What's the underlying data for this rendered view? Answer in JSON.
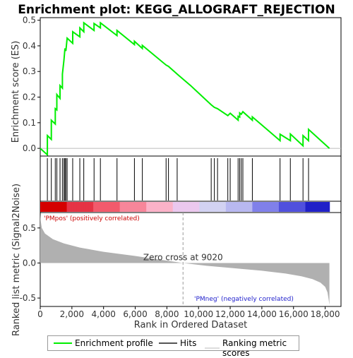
{
  "chart_data": {
    "type": "line",
    "title": "Enrichment plot: KEGG_ALLOGRAFT_REJECTION",
    "ylabel": "Enrichment score (ES)",
    "xlabel": "Rank in Ordered Dataset",
    "ylabel2": "Ranked list metric (Signal2Noise)",
    "xlim": [
      0,
      19000
    ],
    "ylim": [
      -0.03,
      0.51
    ],
    "ylim2": [
      -0.62,
      0.72
    ],
    "xticks": [
      0,
      2000,
      4000,
      6000,
      8000,
      10000,
      12000,
      14000,
      16000,
      18000
    ],
    "xtick_labels": [
      "0",
      "2,000",
      "4,000",
      "6,000",
      "8,000",
      "10,000",
      "12,000",
      "14,000",
      "16,000",
      "18,000"
    ],
    "yticks": [
      0.0,
      0.1,
      0.2,
      0.3,
      0.4,
      0.5
    ],
    "ytick_labels": [
      "0.0",
      "0.1",
      "0.2",
      "0.3",
      "0.4",
      "0.5"
    ],
    "yticks2": [
      0.5,
      0.0,
      -0.5
    ],
    "ytick2_labels": [
      "0.5",
      "0.0",
      "-0.5"
    ],
    "zero_cross_label": "Zero cross at 9020",
    "zero_cross": 9020,
    "pos_label": "'PMpos' (positively correlated)",
    "neg_label": "'PMneg' (negatively correlated)",
    "n_genes": 18270,
    "hits": [
      450,
      700,
      950,
      1050,
      1250,
      1400,
      1500,
      1560,
      1620,
      1700,
      2050,
      2500,
      2750,
      3400,
      3800,
      4850,
      5950,
      6450,
      7950,
      8100,
      8650,
      10800,
      11000,
      11200,
      11850,
      12000,
      12500,
      12600,
      12700,
      12800,
      13400,
      15150,
      15800,
      16600,
      16950
    ],
    "es_points": [
      [
        0,
        0.0
      ],
      [
        450,
        -0.025
      ],
      [
        450,
        0.05
      ],
      [
        700,
        0.035
      ],
      [
        700,
        0.11
      ],
      [
        950,
        0.095
      ],
      [
        950,
        0.155
      ],
      [
        1050,
        0.15
      ],
      [
        1050,
        0.21
      ],
      [
        1250,
        0.195
      ],
      [
        1250,
        0.245
      ],
      [
        1400,
        0.235
      ],
      [
        1400,
        0.29
      ],
      [
        1500,
        0.345
      ],
      [
        1560,
        0.39
      ],
      [
        1620,
        0.38
      ],
      [
        1700,
        0.43
      ],
      [
        2050,
        0.41
      ],
      [
        2050,
        0.455
      ],
      [
        2500,
        0.435
      ],
      [
        2500,
        0.47
      ],
      [
        2750,
        0.455
      ],
      [
        2750,
        0.49
      ],
      [
        3400,
        0.46
      ],
      [
        3400,
        0.487
      ],
      [
        3800,
        0.47
      ],
      [
        3800,
        0.49
      ],
      [
        4850,
        0.44
      ],
      [
        4850,
        0.46
      ],
      [
        5950,
        0.405
      ],
      [
        5950,
        0.418
      ],
      [
        6450,
        0.39
      ],
      [
        6450,
        0.402
      ],
      [
        7950,
        0.325
      ],
      [
        8100,
        0.32
      ],
      [
        8650,
        0.29
      ],
      [
        9500,
        0.245
      ],
      [
        10800,
        0.17
      ],
      [
        11000,
        0.16
      ],
      [
        11200,
        0.155
      ],
      [
        11850,
        0.128
      ],
      [
        12000,
        0.137
      ],
      [
        12500,
        0.11
      ],
      [
        12500,
        0.125
      ],
      [
        12600,
        0.122
      ],
      [
        12600,
        0.138
      ],
      [
        12700,
        0.133
      ],
      [
        12800,
        0.143
      ],
      [
        13400,
        0.11
      ],
      [
        13400,
        0.123
      ],
      [
        15150,
        0.03
      ],
      [
        15150,
        0.055
      ],
      [
        15800,
        0.03
      ],
      [
        15800,
        0.056
      ],
      [
        16600,
        0.01
      ],
      [
        16600,
        0.05
      ],
      [
        16950,
        0.03
      ],
      [
        16950,
        0.074
      ],
      [
        18270,
        0.0
      ]
    ],
    "metric_curve": [
      [
        0,
        0.7
      ],
      [
        30,
        0.6
      ],
      [
        100,
        0.5
      ],
      [
        300,
        0.42
      ],
      [
        800,
        0.34
      ],
      [
        1500,
        0.28
      ],
      [
        2500,
        0.22
      ],
      [
        4000,
        0.16
      ],
      [
        6000,
        0.1
      ],
      [
        7500,
        0.05
      ],
      [
        9020,
        0.0
      ],
      [
        10500,
        -0.04
      ],
      [
        12000,
        -0.07
      ],
      [
        14000,
        -0.11
      ],
      [
        15500,
        -0.15
      ],
      [
        16500,
        -0.19
      ],
      [
        17200,
        -0.23
      ],
      [
        17700,
        -0.28
      ],
      [
        18000,
        -0.34
      ],
      [
        18150,
        -0.42
      ],
      [
        18220,
        -0.52
      ],
      [
        18270,
        -0.6
      ]
    ],
    "heatmap_colors": [
      "#d40000",
      "#e53345",
      "#f25a6c",
      "#f7869a",
      "#fbb2c8",
      "#ebc8ee",
      "#d2d2f2",
      "#b8b8f0",
      "#8080ea",
      "#5050dd",
      "#2020c8"
    ],
    "series_color": "#00ee00",
    "hit_color": "#000000",
    "metric_color": "#b0b0b0"
  },
  "legend": {
    "enrichment_profile": "Enrichment profile",
    "hits": "Hits",
    "ranking_metric": "Ranking metric scores"
  }
}
